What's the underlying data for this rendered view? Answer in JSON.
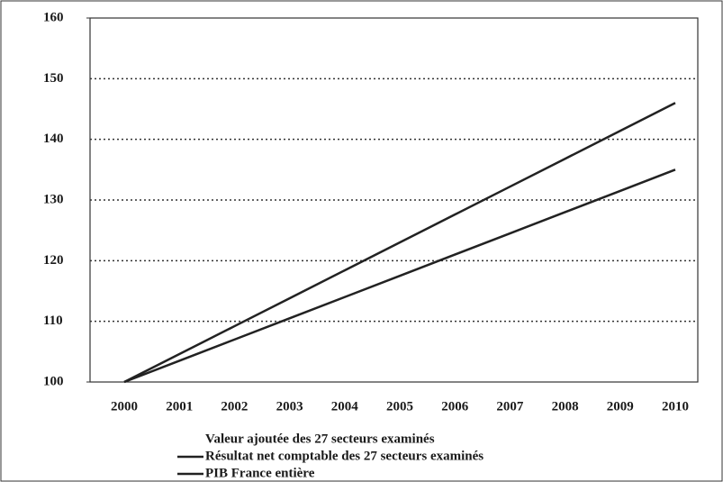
{
  "chart_data": {
    "type": "line",
    "categories": [
      "2000",
      "2001",
      "2002",
      "2003",
      "2004",
      "2005",
      "2006",
      "2007",
      "2008",
      "2009",
      "2010"
    ],
    "legend_note": "Valeur ajoutée des 27 secteurs examinés",
    "series": [
      {
        "name": "Résultat net comptable des 27 secteurs examinés",
        "color": "#222222",
        "values": [
          100,
          104.6,
          109.2,
          113.8,
          118.4,
          123,
          127.6,
          132.2,
          136.8,
          141.4,
          146
        ]
      },
      {
        "name": "PIB France entière",
        "color": "#222222",
        "values": [
          100,
          103.5,
          107,
          110.5,
          114,
          117.5,
          121,
          124.5,
          128,
          131.5,
          135
        ]
      }
    ],
    "ylim": [
      100,
      160
    ],
    "yticks": [
      100,
      110,
      120,
      130,
      140,
      150,
      160
    ],
    "grid": true
  }
}
